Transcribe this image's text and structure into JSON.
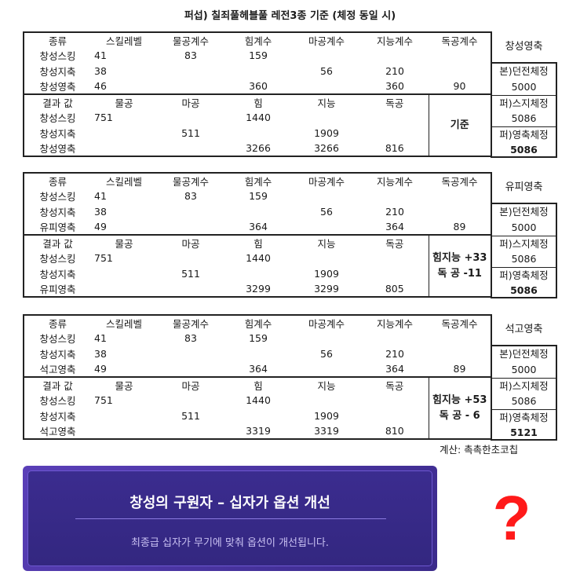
{
  "title": "퍼섭) 칠죄풀헤블풀 레전3종 기준 (체정 동일 시)",
  "headers": {
    "input": [
      "종류",
      "스킬레벨",
      "물공계수",
      "힘계수",
      "마공계수",
      "지능계수",
      "독공계수"
    ],
    "result": [
      "결과 값",
      "물공",
      "마공",
      "힘",
      "지능",
      "독공"
    ]
  },
  "blocks": [
    {
      "side_title": "창성영축",
      "input_rows": [
        {
          "name": "창성스킹",
          "skill": "41",
          "phys": "83",
          "str": "159",
          "mag": "",
          "int": "",
          "indep": ""
        },
        {
          "name": "창성지축",
          "skill": "38",
          "phys": "",
          "str": "",
          "mag": "56",
          "int": "210",
          "indep": ""
        },
        {
          "name": "창성영축",
          "skill": "46",
          "phys": "",
          "str": "360",
          "mag": "",
          "int": "360",
          "indep": "90"
        }
      ],
      "result_rows": [
        {
          "name": "창성스킹",
          "phys": "751",
          "mag": "",
          "str": "1440",
          "int": "",
          "indep": ""
        },
        {
          "name": "창성지축",
          "phys": "",
          "mag": "511",
          "str": "",
          "int": "1909",
          "indep": ""
        },
        {
          "name": "창성영축",
          "phys": "",
          "mag": "",
          "str": "3266",
          "int": "3266",
          "indep": "816"
        }
      ],
      "note": [
        "기준"
      ],
      "side_values": [
        "본)던전체정",
        "5000",
        "퍼)스지체정",
        "5086",
        "퍼)영축체정",
        "5086"
      ]
    },
    {
      "side_title": "유피영축",
      "input_rows": [
        {
          "name": "창성스킹",
          "skill": "41",
          "phys": "83",
          "str": "159",
          "mag": "",
          "int": "",
          "indep": ""
        },
        {
          "name": "창성지축",
          "skill": "38",
          "phys": "",
          "str": "",
          "mag": "56",
          "int": "210",
          "indep": ""
        },
        {
          "name": "유피영축",
          "skill": "49",
          "phys": "",
          "str": "364",
          "mag": "",
          "int": "364",
          "indep": "89"
        }
      ],
      "result_rows": [
        {
          "name": "창성스킹",
          "phys": "751",
          "mag": "",
          "str": "1440",
          "int": "",
          "indep": ""
        },
        {
          "name": "창성지축",
          "phys": "",
          "mag": "511",
          "str": "",
          "int": "1909",
          "indep": ""
        },
        {
          "name": "유피영축",
          "phys": "",
          "mag": "",
          "str": "3299",
          "int": "3299",
          "indep": "805"
        }
      ],
      "note": [
        "힘지능 +33",
        "독  공 -11"
      ],
      "side_values": [
        "본)던전체정",
        "5000",
        "퍼)스지체정",
        "5086",
        "퍼)영축체정",
        "5086"
      ]
    },
    {
      "side_title": "석고영축",
      "input_rows": [
        {
          "name": "창성스킹",
          "skill": "41",
          "phys": "83",
          "str": "159",
          "mag": "",
          "int": "",
          "indep": ""
        },
        {
          "name": "창성지축",
          "skill": "38",
          "phys": "",
          "str": "",
          "mag": "56",
          "int": "210",
          "indep": ""
        },
        {
          "name": "석고영축",
          "skill": "49",
          "phys": "",
          "str": "364",
          "mag": "",
          "int": "364",
          "indep": "89"
        }
      ],
      "result_rows": [
        {
          "name": "창성스킹",
          "phys": "751",
          "mag": "",
          "str": "1440",
          "int": "",
          "indep": ""
        },
        {
          "name": "창성지축",
          "phys": "",
          "mag": "511",
          "str": "",
          "int": "1909",
          "indep": ""
        },
        {
          "name": "석고영축",
          "phys": "",
          "mag": "",
          "str": "3319",
          "int": "3319",
          "indep": "810"
        }
      ],
      "note": [
        "힘지능 +53",
        "독  공 - 6"
      ],
      "side_values": [
        "본)던전체정",
        "5000",
        "퍼)스지체정",
        "5086",
        "퍼)영축체정",
        "5121"
      ]
    }
  ],
  "credit": "계산: 촉촉한초코칩",
  "banner": {
    "title": "창성의 구원자 – 십자가 옵션 개선",
    "subtitle": "최종급 십자가 무기에 맞춰 옵션이 개선됩니다."
  },
  "question_mark": "?",
  "colors": {
    "banner_bg": "#3b2c8f",
    "banner_border": "#5a3fb8",
    "question_mark": "#ff1a1a"
  }
}
